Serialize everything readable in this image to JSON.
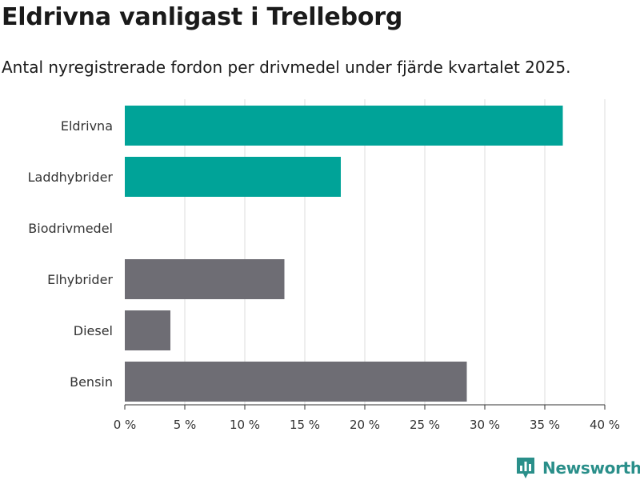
{
  "header": {
    "title": "Eldrivna vanligast i Trelleborg",
    "subtitle": "Antal nyregistrerade fordon per drivmedel under fjärde kvartalet 2025."
  },
  "brand": {
    "name": "Newsworthy",
    "color": "#2a8f8a",
    "icon": "bar-chart-logo-icon"
  },
  "chart_data": {
    "type": "bar",
    "orientation": "horizontal",
    "title": "Eldrivna vanligast i Trelleborg",
    "subtitle": "Antal nyregistrerade fordon per drivmedel under fjärde kvartalet 2025.",
    "xlabel": "",
    "ylabel": "",
    "categories": [
      "Eldrivna",
      "Laddhybrider",
      "Biodrivmedel",
      "Elhybrider",
      "Diesel",
      "Bensin"
    ],
    "values": [
      36.5,
      18.0,
      0,
      13.3,
      3.8,
      28.5
    ],
    "unit": "%",
    "colors": [
      "#00a398",
      "#00a398",
      "#00a398",
      "#6e6d74",
      "#6e6d74",
      "#6e6d74"
    ],
    "xlim": [
      0,
      40
    ],
    "ticks": [
      0,
      5,
      10,
      15,
      20,
      25,
      30,
      35,
      40
    ],
    "tick_labels": [
      "0 %",
      "5 %",
      "10 %",
      "15 %",
      "20 %",
      "25 %",
      "30 %",
      "35 %",
      "40 %"
    ],
    "grid": true,
    "legend": "none"
  }
}
